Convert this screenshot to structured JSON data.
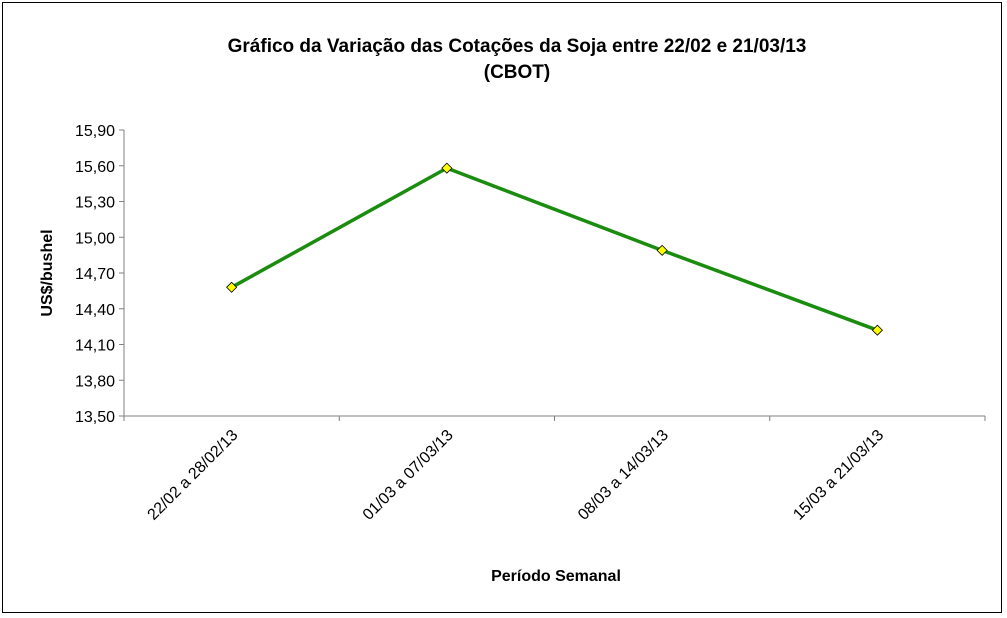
{
  "chart_data": {
    "type": "line",
    "title_line1": "Gráfico da Variação das Cotações da Soja entre 22/02 e 21/03/13",
    "title_line2": "(CBOT)",
    "xlabel": "Período Semanal",
    "ylabel": "US$/bushel",
    "categories": [
      "22/02 a 28/02/13",
      "01/03 a 07/03/13",
      "08/03 a 14/03/13",
      "15/03 a 21/03/13"
    ],
    "series": [
      {
        "values": [
          14.58,
          15.58,
          14.89,
          14.22
        ]
      }
    ],
    "ylim": [
      13.5,
      15.9
    ],
    "yticks": [
      "13,50",
      "13,80",
      "14,10",
      "14,40",
      "14,70",
      "15,00",
      "15,30",
      "15,60",
      "15,90"
    ],
    "grid": false,
    "legend": "none",
    "colors": {
      "line": "#1a8c0e",
      "marker": "#ffff00",
      "marker_stroke": "#000000",
      "axis": "#808080"
    }
  }
}
